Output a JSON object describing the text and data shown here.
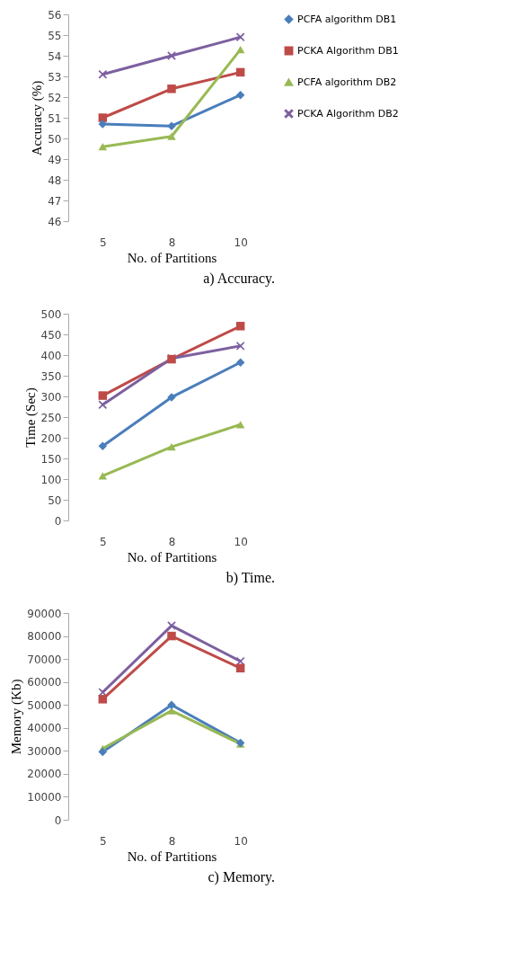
{
  "chart_data": [
    {
      "type": "line",
      "categories": [
        "5",
        "8",
        "10"
      ],
      "xlabel": "No. of Partitions",
      "ylabel": "Accuracy (%)",
      "ylim": [
        46,
        56
      ],
      "yticks": [
        46,
        47,
        48,
        49,
        50,
        51,
        52,
        53,
        54,
        55,
        56
      ],
      "grid": false,
      "legend": "right",
      "annotations": [
        "a) Accuracy."
      ],
      "series": [
        {
          "name": "PCFA algorithm DB1",
          "color": "#4a7ebb",
          "marker": "diamond",
          "values": [
            50.7,
            50.6,
            52.1
          ]
        },
        {
          "name": "PCKA Algorithm DB1",
          "color": "#be4b48",
          "marker": "square",
          "values": [
            51.0,
            52.4,
            53.2
          ]
        },
        {
          "name": "PCFA algorithm DB2",
          "color": "#98b954",
          "marker": "triangle",
          "values": [
            49.6,
            50.1,
            54.3
          ]
        },
        {
          "name": "PCKA Algorithm DB2",
          "color": "#7d60a0",
          "marker": "cross",
          "values": [
            53.1,
            54.0,
            54.9
          ]
        }
      ]
    },
    {
      "type": "line",
      "categories": [
        "5",
        "8",
        "10"
      ],
      "xlabel": "No. of Partitions",
      "ylabel": "Time (Sec)",
      "ylim": [
        0,
        500
      ],
      "yticks": [
        0,
        50,
        100,
        150,
        200,
        250,
        300,
        350,
        400,
        450,
        500
      ],
      "grid": false,
      "legend": "right",
      "annotations": [
        "b) Time."
      ],
      "series": [
        {
          "name": "PCFA algorithm DB1",
          "color": "#4a7ebb",
          "marker": "diamond",
          "values": [
            180,
            298,
            382
          ]
        },
        {
          "name": "PCKA Algorithm DB1",
          "color": "#be4b48",
          "marker": "square",
          "values": [
            302,
            390,
            470
          ]
        },
        {
          "name": "PCFA algorithm DB2",
          "color": "#98b954",
          "marker": "triangle",
          "values": [
            108,
            178,
            232
          ]
        },
        {
          "name": "PCKA Algorithm DB2",
          "color": "#7d60a0",
          "marker": "cross",
          "values": [
            280,
            392,
            422
          ]
        }
      ]
    },
    {
      "type": "line",
      "categories": [
        "5",
        "8",
        "10"
      ],
      "xlabel": "No. of Partitions",
      "ylabel": "Memory (Kb)",
      "ylim": [
        0,
        90000
      ],
      "yticks": [
        0,
        10000,
        20000,
        30000,
        40000,
        50000,
        60000,
        70000,
        80000,
        90000
      ],
      "grid": false,
      "legend": "right",
      "annotations": [
        "c) Memory."
      ],
      "series": [
        {
          "name": "PCFA algorithm DB1",
          "color": "#4a7ebb",
          "marker": "diamond",
          "values": [
            29500,
            50000,
            33500
          ]
        },
        {
          "name": "PCKA Algorithm DB1",
          "color": "#be4b48",
          "marker": "square",
          "values": [
            52500,
            80000,
            66000
          ]
        },
        {
          "name": "PCFA algorithm DB2",
          "color": "#98b954",
          "marker": "triangle",
          "values": [
            31000,
            47500,
            33000
          ]
        },
        {
          "name": "PCKA Algorithm DB2",
          "color": "#7d60a0",
          "marker": "cross",
          "values": [
            55500,
            84500,
            69000
          ]
        }
      ]
    }
  ]
}
